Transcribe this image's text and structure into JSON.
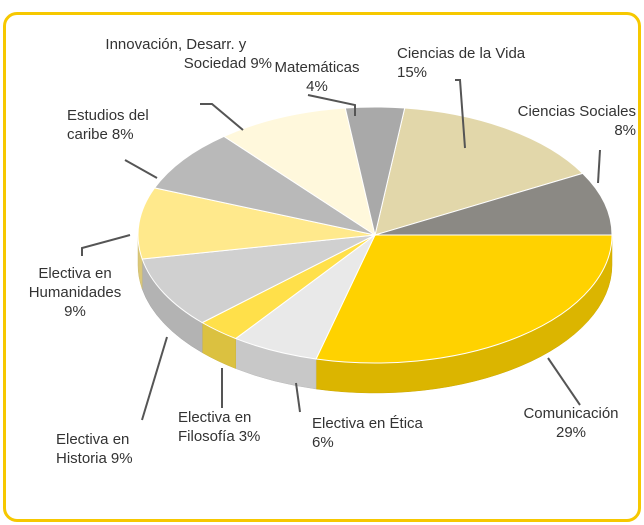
{
  "chart_data": {
    "type": "pie3d",
    "categories": [
      "Ciencias de la Vida",
      "Ciencias Sociales",
      "Comunicación",
      "Electiva en Ética",
      "Electiva en Filosofía",
      "Electiva en Historia",
      "Electiva en Humanidades",
      "Estudios del caribe",
      "Innovación, Desarr. y Sociedad",
      "Matemáticas"
    ],
    "values": [
      15,
      8,
      29,
      6,
      3,
      9,
      9,
      8,
      9,
      4
    ],
    "value_labels": [
      "15%",
      "8%",
      "29%",
      "6%",
      "3%",
      "9%",
      "9%",
      "8%",
      "9%",
      "4%"
    ],
    "colors": [
      "#e2d7aa",
      "#8b8984",
      "#ffd200",
      "#e9e9e9",
      "#ffe04a",
      "#d0d0d0",
      "#ffe98c",
      "#b9b9b9",
      "#fff8dc",
      "#a9a9a9"
    ]
  }
}
